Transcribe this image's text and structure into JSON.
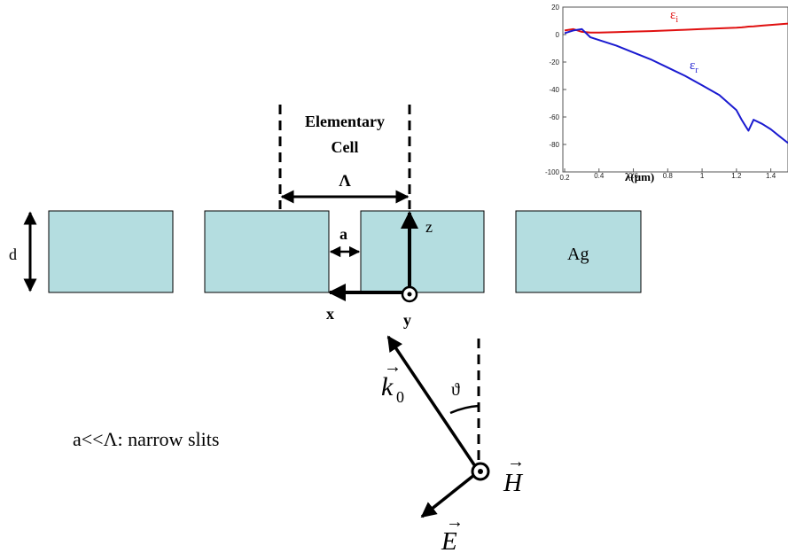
{
  "diagram": {
    "cell_label_line1": "Elementary",
    "cell_label_line2": "Cell",
    "period_label": "Λ",
    "slit_label": "a",
    "thickness_label": "d",
    "material_label": "Ag",
    "axis_z": "z",
    "axis_x": "x",
    "axis_y": "y",
    "wavevector_label": "k",
    "wavevector_subscript": "0",
    "angle_label": "ϑ",
    "h_field_label": "H",
    "e_field_label": "E",
    "arrow_symbol": "→",
    "note": "a<<Λ: narrow slits",
    "colors": {
      "metal_fill": "#b4dde0",
      "metal_stroke": "#000000",
      "eps_i": "#e01010",
      "eps_r": "#1a1ad0"
    }
  },
  "chart_data": {
    "type": "line",
    "x": [
      0.2,
      0.25,
      0.3,
      0.35,
      0.4,
      0.5,
      0.6,
      0.7,
      0.8,
      0.9,
      1.0,
      1.1,
      1.2,
      1.23,
      1.25,
      1.27,
      1.3,
      1.35,
      1.4,
      1.45,
      1.5
    ],
    "series": [
      {
        "name": "εᵢ",
        "values": [
          3,
          4,
          2,
          1.5,
          1.5,
          1.8,
          2.2,
          2.5,
          3,
          3.5,
          4,
          4.5,
          5,
          5.2,
          5.5,
          5.8,
          6,
          6.5,
          7,
          7.5,
          8
        ]
      },
      {
        "name": "εᵣ",
        "values": [
          1,
          3,
          4,
          -2,
          -4,
          -8,
          -13,
          -18,
          -24,
          -30,
          -37,
          -44,
          -55,
          -62,
          -66,
          -70,
          -62,
          -65,
          -69,
          -74,
          -79
        ]
      }
    ],
    "xlim": [
      0.2,
      1.5
    ],
    "ylim": [
      -100,
      20
    ],
    "xticks": [
      "0.2",
      "0.4",
      "0.6",
      "0.8",
      "1",
      "1.2",
      "1.4"
    ],
    "yticks": [
      "20",
      "0",
      "-20",
      "-40",
      "-60",
      "-80",
      "-100"
    ],
    "xlabel": "λ(μm)",
    "ylabel": "",
    "series_labels": [
      "ε",
      "ε"
    ],
    "series_subs": [
      "i",
      "r"
    ]
  }
}
